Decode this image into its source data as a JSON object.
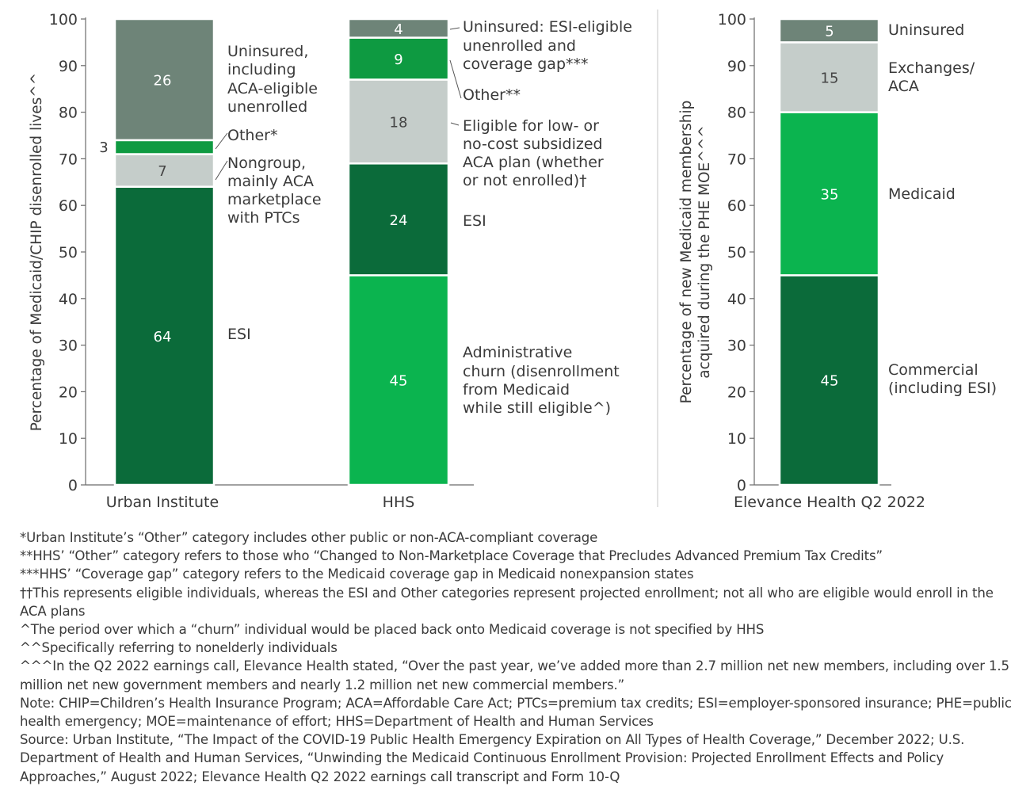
{
  "chart_data": [
    {
      "type": "bar",
      "stacked": true,
      "ylabel": "Percentage of Medicaid/CHIP disenrolled lives^^",
      "ylim": [
        0,
        100
      ],
      "yticks": [
        0,
        10,
        20,
        30,
        40,
        50,
        60,
        70,
        80,
        90,
        100
      ],
      "categories": [
        "Urban Institute",
        "HHS"
      ],
      "bars": [
        {
          "category": "Urban Institute",
          "segments": [
            {
              "value": 64,
              "label": [
                "ESI"
              ],
              "color": "#0b6b3a"
            },
            {
              "value": 7,
              "label": [
                "Nongroup,",
                "mainly ACA",
                "marketplace",
                "with PTCs"
              ],
              "color": "#c5cdca"
            },
            {
              "value": 3,
              "label": [
                "Other*"
              ],
              "color": "#0e9a41"
            },
            {
              "value": 26,
              "label": [
                "Uninsured,",
                "including",
                "ACA-eligible",
                "unenrolled"
              ],
              "color": "#6e8478"
            }
          ]
        },
        {
          "category": "HHS",
          "segments": [
            {
              "value": 45,
              "label": [
                "Administrative",
                "churn (disenrollment",
                "from Medicaid",
                "while still eligible^)"
              ],
              "color": "#0bb44f"
            },
            {
              "value": 24,
              "label": [
                "ESI"
              ],
              "color": "#0b6b3a"
            },
            {
              "value": 18,
              "label": [
                "Eligible for low- or",
                "no-cost subsidized",
                "ACA plan (whether",
                "or not enrolled)†"
              ],
              "color": "#c5cdca"
            },
            {
              "value": 9,
              "label": [
                "Other**"
              ],
              "color": "#0e9a41"
            },
            {
              "value": 4,
              "label": [
                "Uninsured: ESI-eligible",
                "unenrolled and",
                "coverage gap***"
              ],
              "color": "#6e8478"
            }
          ]
        }
      ]
    },
    {
      "type": "bar",
      "stacked": true,
      "ylabel": [
        "Percentage of new Medicaid membership",
        "acquired during the PHE MOE^^^"
      ],
      "ylim": [
        0,
        100
      ],
      "yticks": [
        0,
        10,
        20,
        30,
        40,
        50,
        60,
        70,
        80,
        90,
        100
      ],
      "categories": [
        "Elevance Health Q2 2022"
      ],
      "bars": [
        {
          "category": "Elevance Health Q2 2022",
          "segments": [
            {
              "value": 45,
              "label": [
                "Commercial",
                "(including ESI)"
              ],
              "color": "#0b6b3a"
            },
            {
              "value": 35,
              "label": [
                "Medicaid"
              ],
              "color": "#0bb44f"
            },
            {
              "value": 15,
              "label": [
                "Exchanges/",
                "ACA"
              ],
              "color": "#c5cdca"
            },
            {
              "value": 5,
              "label": [
                "Uninsured"
              ],
              "color": "#6e8478"
            }
          ]
        }
      ]
    }
  ],
  "footnotes": [
    "*Urban Institute’s “Other” category includes other public or non-ACA-compliant coverage",
    "**HHS’ “Other” category refers to those who “Changed to Non-Marketplace Coverage that Precludes Advanced Premium Tax Credits”",
    "***HHS’ “Coverage gap” category refers to the Medicaid coverage gap in Medicaid nonexpansion states",
    "††This represents eligible individuals, whereas the ESI and Other categories represent projected enrollment; not all who are eligible would enroll in the ACA plans",
    "^The period over which a “churn” individual would be placed back onto Medicaid coverage is not specified by HHS",
    "^^Specifically referring to nonelderly individuals",
    "^^^In the Q2 2022 earnings call, Elevance Health stated, “Over the past year, we’ve added more than 2.7 million net new members, including over 1.5 million net new government members and nearly 1.2 million net new commercial members.”",
    "Note: CHIP=Children’s Health Insurance Program; ACA=Affordable Care Act; PTCs=premium tax credits; ESI=employer-sponsored insurance; PHE=public health emergency; MOE=maintenance of effort; HHS=Department of Health and Human Services",
    "Source: Urban Institute, “The Impact of the COVID-19 Public Health Emergency Expiration on All Types of Health Coverage,” December 2022; U.S. Department of Health and Human Services, “Unwinding the Medicaid Continuous Enrollment Provision: Projected Enrollment Effects and Policy Approaches,” August 2022; Elevance Health Q2 2022 earnings call transcript and Form 10-Q"
  ]
}
